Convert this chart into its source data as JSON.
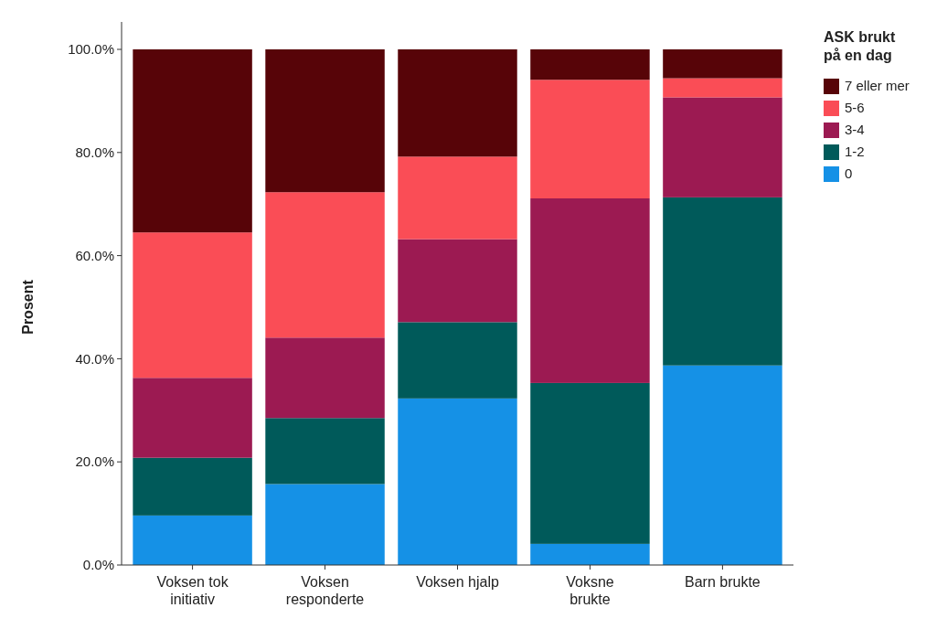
{
  "chart_data": {
    "type": "bar",
    "stacked": true,
    "ylabel": "Prosent",
    "legend_title": "ASK brukt på en dag",
    "legend": "top right",
    "categories": [
      "Voksen tok initiativ",
      "Voksen responderte",
      "Voksen hjalp",
      "Voksne brukte",
      "Barn brukte"
    ],
    "series": [
      {
        "name": "0",
        "color": "#1591e6",
        "values": [
          9.6,
          15.7,
          32.3,
          4.1,
          38.7
        ]
      },
      {
        "name": "1-2",
        "color": "#005a5a",
        "values": [
          11.2,
          12.8,
          14.8,
          31.2,
          32.6
        ]
      },
      {
        "name": "3-4",
        "color": "#9c1a52",
        "values": [
          15.5,
          15.6,
          16.1,
          35.8,
          19.4
        ]
      },
      {
        "name": "5-6",
        "color": "#fa4d56",
        "values": [
          28.2,
          28.2,
          16.0,
          23.0,
          3.7
        ]
      },
      {
        "name": "7 eller mer",
        "color": "#570408",
        "values": [
          35.5,
          27.7,
          20.8,
          5.9,
          5.6
        ]
      }
    ],
    "ylim": [
      0,
      100
    ],
    "yticks": [
      {
        "value": 0,
        "label": "0.0%"
      },
      {
        "value": 20,
        "label": "20.0%"
      },
      {
        "value": 40,
        "label": "40.0%"
      },
      {
        "value": 60,
        "label": "60.0%"
      },
      {
        "value": 80,
        "label": "80.0%"
      },
      {
        "value": 100,
        "label": "100.0%"
      }
    ]
  }
}
